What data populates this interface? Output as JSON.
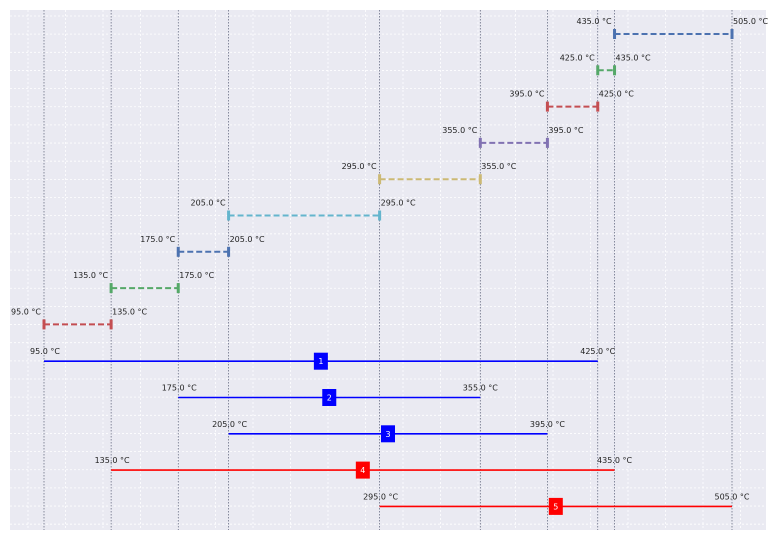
{
  "chart_data": {
    "type": "interval",
    "unit": "°C",
    "x_range": [
      75,
      525
    ],
    "grid": true,
    "vertical_guides": [
      95,
      135,
      175,
      205,
      295,
      355,
      395,
      425,
      435,
      505
    ],
    "colors": {
      "background": "#EAEAF2",
      "grid": "#ffffff",
      "guide": "#5a6078",
      "red": "#C44E52",
      "green": "#55A868",
      "blue": "#4C72B0",
      "cyan": "#64B5CD",
      "yellow": "#CCB974",
      "purple": "#8172B2",
      "solid_blue": "#0000ff",
      "solid_red": "#ff0000"
    },
    "segments": [
      {
        "start": 95,
        "end": 135,
        "color": "red",
        "start_label": "95.0 °C",
        "end_label": "135.0 °C"
      },
      {
        "start": 135,
        "end": 175,
        "color": "green",
        "start_label": "135.0 °C",
        "end_label": "175.0 °C"
      },
      {
        "start": 175,
        "end": 205,
        "color": "blue",
        "start_label": "175.0 °C",
        "end_label": "205.0 °C"
      },
      {
        "start": 205,
        "end": 295,
        "color": "cyan",
        "start_label": "205.0 °C",
        "end_label": "295.0 °C"
      },
      {
        "start": 295,
        "end": 355,
        "color": "yellow",
        "start_label": "295.0 °C",
        "end_label": "355.0 °C"
      },
      {
        "start": 355,
        "end": 395,
        "color": "purple",
        "start_label": "355.0 °C",
        "end_label": "395.0 °C"
      },
      {
        "start": 395,
        "end": 425,
        "color": "red",
        "start_label": "395.0 °C",
        "end_label": "425.0 °C"
      },
      {
        "start": 425,
        "end": 435,
        "color": "green",
        "start_label": "425.0 °C",
        "end_label": "435.0 °C"
      },
      {
        "start": 435,
        "end": 505,
        "color": "blue",
        "start_label": "435.0 °C",
        "end_label": "505.0 °C"
      }
    ],
    "ranges": [
      {
        "id": "1",
        "start": 95,
        "end": 425,
        "color": "solid_blue",
        "start_label": "95.0 °C",
        "end_label": "425.0 °C"
      },
      {
        "id": "2",
        "start": 175,
        "end": 355,
        "color": "solid_blue",
        "start_label": "175.0 °C",
        "end_label": "355.0 °C"
      },
      {
        "id": "3",
        "start": 205,
        "end": 395,
        "color": "solid_blue",
        "start_label": "205.0 °C",
        "end_label": "395.0 °C"
      },
      {
        "id": "4",
        "start": 135,
        "end": 435,
        "color": "solid_red",
        "start_label": "135.0 °C",
        "end_label": "435.0 °C"
      },
      {
        "id": "5",
        "start": 295,
        "end": 505,
        "color": "solid_red",
        "start_label": "295.0 °C",
        "end_label": "505.0 °C"
      }
    ]
  }
}
